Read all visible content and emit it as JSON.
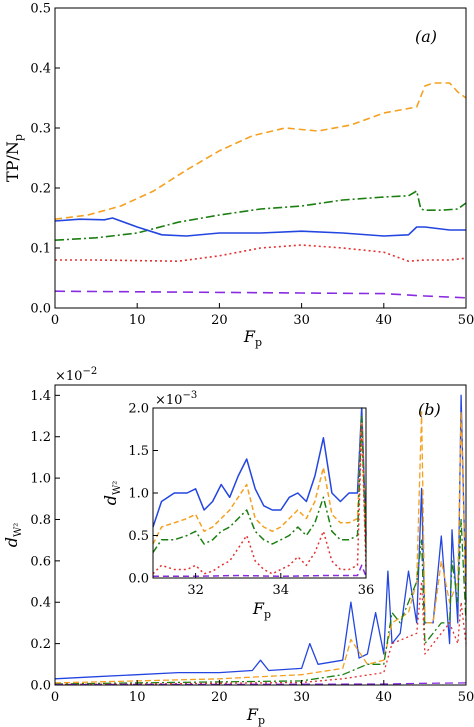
{
  "chart_data": [
    {
      "type": "line",
      "panel_label": "(a)",
      "xlabel_main": "F",
      "xlabel_sub": "p",
      "ylabel_main": "TP/N",
      "ylabel_sub": "p",
      "xlim": [
        0,
        50
      ],
      "ylim": [
        0,
        0.5
      ],
      "xticks": [
        0,
        10,
        20,
        30,
        40,
        50
      ],
      "xtick_labels": [
        "0",
        "10",
        "20",
        "30",
        "40",
        "50"
      ],
      "yticks": [
        0,
        0.1,
        0.2,
        0.3,
        0.4,
        0.5
      ],
      "ytick_labels": [
        "0.0",
        "0.1",
        "0.2",
        "0.3",
        "0.4",
        "0.5"
      ],
      "series": [
        {
          "color": "#f5a01f",
          "dash": "7,4",
          "x": [
            0,
            4,
            8,
            12,
            16,
            20,
            24,
            28,
            32,
            36,
            40,
            42,
            44,
            45,
            46,
            48,
            49,
            50
          ],
          "y": [
            0.148,
            0.155,
            0.17,
            0.195,
            0.23,
            0.262,
            0.287,
            0.3,
            0.295,
            0.305,
            0.325,
            0.33,
            0.335,
            0.37,
            0.375,
            0.375,
            0.36,
            0.35
          ]
        },
        {
          "color": "#1a7f10",
          "dash": "9,3,2,3",
          "x": [
            0,
            5,
            10,
            15,
            20,
            25,
            30,
            35,
            40,
            43,
            44,
            44.5,
            45,
            47,
            49,
            50
          ],
          "y": [
            0.113,
            0.117,
            0.125,
            0.143,
            0.155,
            0.165,
            0.17,
            0.18,
            0.185,
            0.187,
            0.195,
            0.165,
            0.163,
            0.163,
            0.165,
            0.175
          ]
        },
        {
          "color": "#2346e0",
          "dash": "",
          "x": [
            0,
            3,
            6,
            7,
            10,
            13,
            16,
            20,
            25,
            30,
            35,
            40,
            43,
            44,
            45,
            48,
            50
          ],
          "y": [
            0.145,
            0.148,
            0.147,
            0.15,
            0.135,
            0.122,
            0.12,
            0.125,
            0.125,
            0.128,
            0.125,
            0.12,
            0.122,
            0.135,
            0.135,
            0.13,
            0.13
          ]
        },
        {
          "color": "#e53030",
          "dash": "2,3",
          "x": [
            0,
            5,
            10,
            15,
            20,
            25,
            30,
            35,
            40,
            43,
            45,
            48,
            50
          ],
          "y": [
            0.08,
            0.08,
            0.079,
            0.078,
            0.087,
            0.1,
            0.105,
            0.1,
            0.093,
            0.078,
            0.08,
            0.08,
            0.083
          ]
        },
        {
          "color": "#8a2be2",
          "dash": "10,6",
          "x": [
            0,
            10,
            20,
            30,
            40,
            45,
            50
          ],
          "y": [
            0.028,
            0.027,
            0.026,
            0.025,
            0.024,
            0.02,
            0.017
          ]
        }
      ]
    },
    {
      "type": "line",
      "panel_label": "(b)",
      "xlabel_main": "F",
      "xlabel_sub": "p",
      "ylabel_main": "d",
      "ylabel_sub": "W²",
      "multiplier_base": "×10",
      "multiplier_exp": "−2",
      "xlim": [
        0,
        50
      ],
      "ylim": [
        0,
        1.45
      ],
      "xticks": [
        0,
        10,
        20,
        30,
        40,
        50
      ],
      "xtick_labels": [
        "0",
        "10",
        "20",
        "30",
        "40",
        "50"
      ],
      "yticks": [
        0,
        0.2,
        0.4,
        0.6,
        0.8,
        1.0,
        1.2,
        1.4
      ],
      "ytick_labels": [
        "0.0",
        "0.2",
        "0.4",
        "0.6",
        "0.8",
        "1.0",
        "1.2",
        "1.4"
      ],
      "series": [
        {
          "color": "#2346e0",
          "dash": "",
          "x": [
            0,
            5,
            10,
            15,
            20,
            24,
            25,
            26,
            30,
            31,
            32,
            35,
            36,
            37,
            38,
            39,
            40,
            40.5,
            41,
            42,
            43,
            44,
            44.6,
            45,
            46,
            47,
            48,
            48.3,
            49,
            49.4,
            50
          ],
          "y": [
            0.03,
            0.04,
            0.05,
            0.06,
            0.06,
            0.07,
            0.12,
            0.07,
            0.08,
            0.2,
            0.1,
            0.12,
            0.4,
            0.13,
            0.15,
            0.35,
            0.15,
            0.55,
            0.2,
            0.25,
            0.55,
            0.3,
            0.95,
            0.3,
            0.3,
            0.72,
            0.2,
            0.75,
            0.3,
            1.4,
            0.4
          ]
        },
        {
          "color": "#f5a01f",
          "dash": "6,3",
          "x": [
            0,
            10,
            20,
            25,
            30,
            35,
            36,
            38,
            40,
            41,
            43,
            44,
            44.6,
            45,
            46,
            47,
            48,
            49,
            49.4,
            50
          ],
          "y": [
            0.01,
            0.02,
            0.03,
            0.04,
            0.05,
            0.08,
            0.22,
            0.1,
            0.12,
            0.3,
            0.35,
            0.5,
            1.32,
            0.3,
            0.3,
            0.6,
            0.4,
            0.5,
            1.32,
            0.4
          ]
        },
        {
          "color": "#1a7f10",
          "dash": "8,3,2,3",
          "x": [
            0,
            10,
            20,
            30,
            35,
            38,
            40,
            41,
            42,
            44,
            44.6,
            45,
            47,
            48,
            48.3,
            49,
            49.4,
            50
          ],
          "y": [
            0.005,
            0.01,
            0.015,
            0.02,
            0.05,
            0.1,
            0.1,
            0.35,
            0.3,
            0.5,
            0.7,
            0.2,
            0.3,
            0.3,
            0.6,
            0.4,
            0.8,
            0.3
          ]
        },
        {
          "color": "#e53030",
          "dash": "2,3",
          "x": [
            0,
            10,
            20,
            30,
            35,
            40,
            41,
            44,
            44.6,
            45,
            48,
            49,
            49.4,
            50
          ],
          "y": [
            0.003,
            0.005,
            0.008,
            0.012,
            0.03,
            0.06,
            0.2,
            0.25,
            0.5,
            0.15,
            0.3,
            0.2,
            0.4,
            0.2
          ]
        },
        {
          "color": "#8a2be2",
          "dash": "8,5",
          "x": [
            0,
            10,
            20,
            30,
            40,
            45,
            50
          ],
          "y": [
            0.002,
            0.003,
            0.003,
            0.004,
            0.005,
            0.008,
            0.01
          ]
        }
      ]
    },
    {
      "type": "line",
      "inset": true,
      "xlabel_main": "F",
      "xlabel_sub": "p",
      "ylabel_main": "d",
      "ylabel_sub": "W²",
      "multiplier_base": "×10",
      "multiplier_exp": "−3",
      "xlim": [
        31,
        36
      ],
      "ylim": [
        0,
        2.0
      ],
      "xticks": [
        32,
        34,
        36
      ],
      "xtick_labels": [
        "32",
        "34",
        "36"
      ],
      "yticks": [
        0,
        0.5,
        1.0,
        1.5,
        2.0
      ],
      "ytick_labels": [
        "0.0",
        "0.5",
        "1.0",
        "1.5",
        "2.0"
      ],
      "series": [
        {
          "color": "#2346e0",
          "dash": "",
          "x": [
            31,
            31.2,
            31.5,
            31.8,
            32,
            32.2,
            32.4,
            32.6,
            32.8,
            33,
            33.2,
            33.4,
            33.6,
            33.8,
            34,
            34.2,
            34.4,
            34.6,
            34.8,
            35,
            35.2,
            35.4,
            35.6,
            35.8,
            35.9,
            36
          ],
          "y": [
            0.6,
            0.9,
            1.0,
            1.0,
            1.05,
            0.8,
            0.9,
            1.1,
            0.95,
            1.2,
            1.4,
            1.05,
            0.85,
            0.8,
            0.8,
            0.95,
            1.0,
            0.9,
            1.2,
            1.65,
            1.0,
            0.9,
            1.0,
            1.0,
            2.0,
            0.5
          ]
        },
        {
          "color": "#f5a01f",
          "dash": "5,3",
          "x": [
            31,
            31.2,
            31.5,
            31.8,
            32,
            32.2,
            32.4,
            32.6,
            32.8,
            33,
            33.2,
            33.4,
            33.6,
            33.8,
            34,
            34.2,
            34.4,
            34.6,
            34.8,
            35,
            35.2,
            35.4,
            35.6,
            35.8,
            35.9,
            36
          ],
          "y": [
            0.4,
            0.6,
            0.65,
            0.7,
            0.75,
            0.55,
            0.6,
            0.7,
            0.8,
            0.95,
            1.1,
            0.7,
            0.6,
            0.55,
            0.6,
            0.7,
            0.8,
            0.7,
            0.9,
            1.3,
            0.75,
            0.65,
            0.65,
            0.7,
            1.9,
            0.4
          ]
        },
        {
          "color": "#1a7f10",
          "dash": "7,3,2,3",
          "x": [
            31,
            31.2,
            31.5,
            31.8,
            32,
            32.2,
            32.4,
            32.6,
            32.8,
            33,
            33.2,
            33.4,
            33.6,
            33.8,
            34,
            34.2,
            34.4,
            34.6,
            34.8,
            35,
            35.2,
            35.4,
            35.6,
            35.8,
            35.9,
            36
          ],
          "y": [
            0.3,
            0.45,
            0.45,
            0.5,
            0.55,
            0.4,
            0.45,
            0.55,
            0.6,
            0.7,
            0.8,
            0.55,
            0.45,
            0.4,
            0.45,
            0.5,
            0.6,
            0.5,
            0.65,
            0.95,
            0.55,
            0.45,
            0.45,
            0.5,
            1.9,
            0.3
          ]
        },
        {
          "color": "#e53030",
          "dash": "2,3",
          "x": [
            31,
            31.2,
            31.5,
            31.8,
            32,
            32.2,
            32.4,
            32.6,
            32.8,
            33,
            33.2,
            33.4,
            33.6,
            33.8,
            34,
            34.2,
            34.4,
            34.6,
            34.8,
            35,
            35.2,
            35.4,
            35.6,
            35.8,
            35.9,
            36
          ],
          "y": [
            0.05,
            0.15,
            0.1,
            0.1,
            0.15,
            0.05,
            0.08,
            0.15,
            0.2,
            0.35,
            0.5,
            0.2,
            0.1,
            0.05,
            0.1,
            0.15,
            0.25,
            0.15,
            0.3,
            0.55,
            0.2,
            0.1,
            0.1,
            0.15,
            1.8,
            0.1
          ]
        },
        {
          "color": "#8a2be2",
          "dash": "6,4",
          "x": [
            31,
            32,
            33,
            34,
            35,
            35.8,
            35.9,
            36
          ],
          "y": [
            0.02,
            0.02,
            0.03,
            0.02,
            0.03,
            0.03,
            0.15,
            0.02
          ]
        }
      ]
    }
  ]
}
